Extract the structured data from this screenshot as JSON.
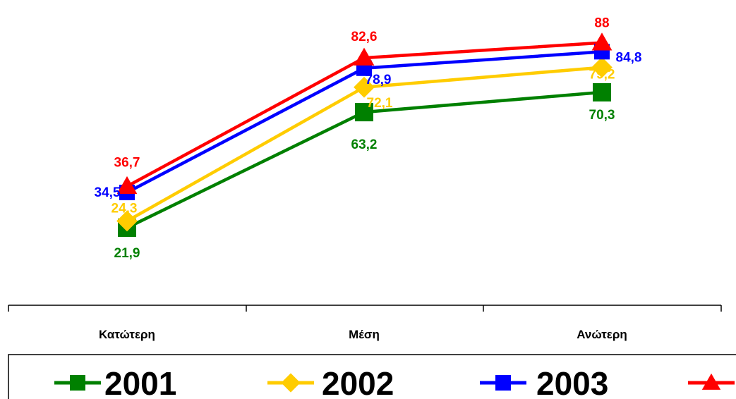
{
  "chart_data": {
    "type": "line",
    "categories": [
      "Κατώτερη",
      "Μέση",
      "Ανώτερη"
    ],
    "series": [
      {
        "name": "2001",
        "values": [
          21.9,
          63.2,
          70.3
        ],
        "labels": [
          "21,9",
          "63,2",
          "70,3"
        ],
        "color": "#008000",
        "marker": "square"
      },
      {
        "name": "2002",
        "values": [
          24.3,
          72.1,
          79.2
        ],
        "labels": [
          "24,3",
          "72,1",
          "79,2"
        ],
        "color": "#FFCC00",
        "marker": "diamond"
      },
      {
        "name": "2003",
        "values": [
          34.5,
          78.9,
          84.8
        ],
        "labels": [
          "34,5",
          "78,9",
          "84,8"
        ],
        "color": "#0000FF",
        "marker": "square"
      },
      {
        "name": "",
        "values": [
          36.7,
          82.6,
          88
        ],
        "labels": [
          "36,7",
          "82,6",
          "88"
        ],
        "color": "#FF0000",
        "marker": "triangle"
      }
    ],
    "title": "",
    "xlabel": "",
    "ylabel": "",
    "legend": "bottom",
    "grid": false
  }
}
